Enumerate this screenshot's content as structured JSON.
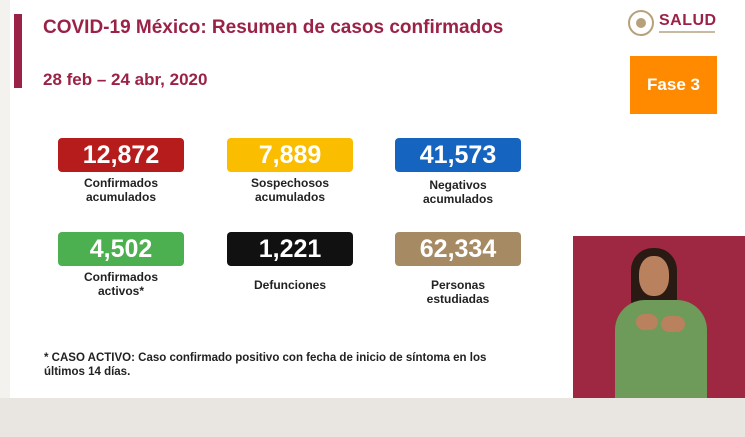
{
  "header": {
    "title": "COVID-19 México: Resumen de casos confirmados",
    "date_range": "28 feb – 24 abr, 2020",
    "logo_text": "SALUD",
    "phase": "Fase 3"
  },
  "stats": [
    {
      "value": "12,872",
      "label_line1": "Confirmados",
      "label_line2": "acumulados",
      "color": "#b71c1c"
    },
    {
      "value": "7,889",
      "label_line1": "Sospechosos",
      "label_line2": "acumulados",
      "color": "#fbbd00"
    },
    {
      "value": "41,573",
      "label_line1": "Negativos",
      "label_line2": "acumulados",
      "color": "#1565c0"
    },
    {
      "value": "4,502",
      "label_line1": "Confirmados",
      "label_line2": "activos*",
      "color": "#4caf50"
    },
    {
      "value": "1,221",
      "label_line1": "Defunciones",
      "label_line2": "",
      "color": "#111111"
    },
    {
      "value": "62,334",
      "label_line1": "Personas",
      "label_line2": "estudiadas",
      "color": "#a68a64"
    }
  ],
  "footnote": {
    "line1": "* CASO ACTIVO: Caso confirmado positivo con fecha de inicio de síntoma en los",
    "line2": "últimos 14 días."
  },
  "colors": {
    "brand": "#9b2247",
    "phase_bg": "#ff8a00"
  }
}
